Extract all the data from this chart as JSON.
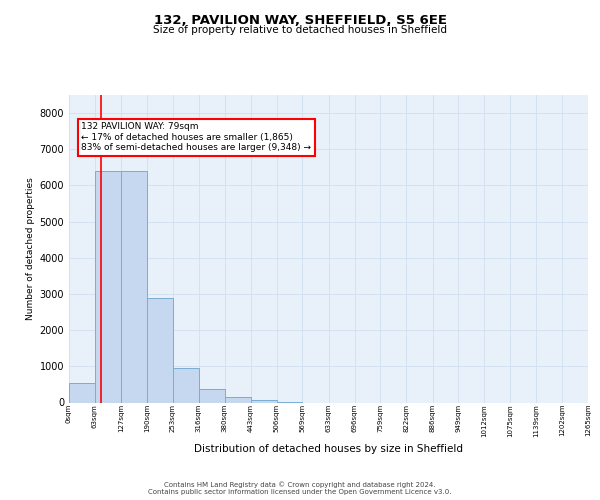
{
  "title": "132, PAVILION WAY, SHEFFIELD, S5 6EE",
  "subtitle": "Size of property relative to detached houses in Sheffield",
  "xlabel": "Distribution of detached houses by size in Sheffield",
  "ylabel": "Number of detached properties",
  "bar_color": "#c5d8f0",
  "bar_edge_color": "#7aadd4",
  "grid_color": "#d0dff0",
  "background_color": "#e8f0fa",
  "property_line_x": 79,
  "annotation_text": "132 PAVILION WAY: 79sqm\n← 17% of detached houses are smaller (1,865)\n83% of semi-detached houses are larger (9,348) →",
  "footer_line1": "Contains HM Land Registry data © Crown copyright and database right 2024.",
  "footer_line2": "Contains public sector information licensed under the Open Government Licence v3.0.",
  "bin_edges": [
    0,
    63,
    127,
    190,
    253,
    316,
    380,
    443,
    506,
    569,
    633,
    696,
    759,
    822,
    886,
    949,
    1012,
    1075,
    1139,
    1202,
    1265
  ],
  "bin_labels": [
    "0sqm",
    "63sqm",
    "127sqm",
    "190sqm",
    "253sqm",
    "316sqm",
    "380sqm",
    "443sqm",
    "506sqm",
    "569sqm",
    "633sqm",
    "696sqm",
    "759sqm",
    "822sqm",
    "886sqm",
    "949sqm",
    "1012sqm",
    "1075sqm",
    "1139sqm",
    "1202sqm",
    "1265sqm"
  ],
  "bar_heights": [
    550,
    6400,
    6400,
    2900,
    960,
    380,
    155,
    80,
    25,
    0,
    0,
    0,
    0,
    0,
    0,
    0,
    0,
    0,
    0,
    0
  ],
  "ylim": [
    0,
    8500
  ],
  "yticks": [
    0,
    1000,
    2000,
    3000,
    4000,
    5000,
    6000,
    7000,
    8000
  ]
}
